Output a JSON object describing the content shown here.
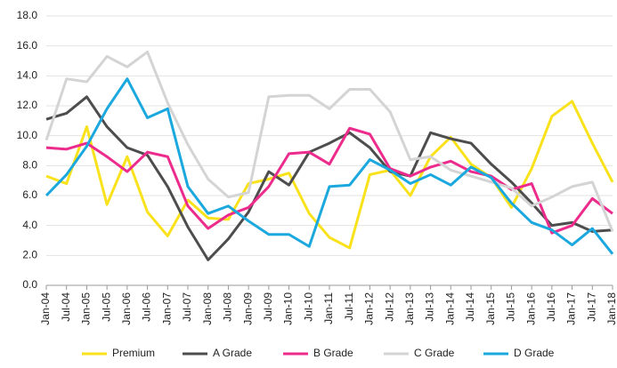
{
  "chart_data": {
    "type": "line",
    "x": [
      "Jan-04",
      "Jul-04",
      "Jan-05",
      "Jul-05",
      "Jan-06",
      "Jul-06",
      "Jan-07",
      "Jul-07",
      "Jan-08",
      "Jul-08",
      "Jan-09",
      "Jul-09",
      "Jan-10",
      "Jul-10",
      "Jan-11",
      "Jul-11",
      "Jan-12",
      "Jul-12",
      "Jan-13",
      "Jul-13",
      "Jan-14",
      "Jul-14",
      "Jan-15",
      "Jul-15",
      "Jan-16",
      "Jul-16",
      "Jan-17",
      "Jul-17",
      "Jan-18"
    ],
    "series": [
      {
        "name": "Premium",
        "color": "#f9e21b",
        "values": [
          7.3,
          6.8,
          10.6,
          5.4,
          8.6,
          4.9,
          3.3,
          5.7,
          4.5,
          4.4,
          6.8,
          7.1,
          7.5,
          4.8,
          3.2,
          2.5,
          7.4,
          7.7,
          6.0,
          8.6,
          9.9,
          8.1,
          7.2,
          5.2,
          7.8,
          11.3,
          12.3,
          9.5,
          6.9
        ]
      },
      {
        "name": "A Grade",
        "color": "#4d4d4d",
        "values": [
          11.1,
          11.5,
          12.6,
          10.6,
          9.2,
          8.7,
          6.6,
          3.9,
          1.7,
          3.1,
          4.9,
          7.6,
          6.7,
          8.9,
          9.5,
          10.2,
          9.2,
          7.6,
          7.3,
          10.2,
          9.8,
          9.5,
          8.1,
          6.9,
          5.5,
          4.0,
          4.2,
          3.6,
          3.7
        ]
      },
      {
        "name": "B Grade",
        "color": "#ec2b8c",
        "values": [
          9.2,
          9.1,
          9.5,
          8.6,
          7.6,
          8.9,
          8.6,
          5.3,
          3.8,
          4.7,
          5.2,
          6.6,
          8.8,
          8.9,
          8.1,
          10.5,
          10.1,
          7.8,
          7.3,
          7.9,
          8.3,
          7.6,
          7.3,
          6.4,
          6.8,
          3.5,
          4.0,
          5.8,
          4.8
        ]
      },
      {
        "name": "C Grade",
        "color": "#d4d4d4",
        "values": [
          9.7,
          13.8,
          13.6,
          15.3,
          14.6,
          15.6,
          12.2,
          9.4,
          7.1,
          5.9,
          6.2,
          12.6,
          12.7,
          12.7,
          11.8,
          13.1,
          13.1,
          11.6,
          8.4,
          8.6,
          7.7,
          7.3,
          6.9,
          6.5,
          5.3,
          5.9,
          6.6,
          6.9,
          3.6
        ]
      },
      {
        "name": "D Grade",
        "color": "#1ba8de",
        "values": [
          6.0,
          7.4,
          9.3,
          11.8,
          13.8,
          11.2,
          11.8,
          6.6,
          4.8,
          5.3,
          4.3,
          3.4,
          3.4,
          2.6,
          6.6,
          6.7,
          8.4,
          7.7,
          6.8,
          7.4,
          6.7,
          7.9,
          7.2,
          5.5,
          4.2,
          3.7,
          2.7,
          3.8,
          2.1
        ]
      }
    ],
    "ylim": [
      0,
      18
    ],
    "yticks": [
      {
        "value": 0,
        "label": "0.0"
      },
      {
        "value": 2,
        "label": "2.0"
      },
      {
        "value": 4,
        "label": "4.0"
      },
      {
        "value": 6,
        "label": "6.0"
      },
      {
        "value": 8,
        "label": "8.0"
      },
      {
        "value": 10,
        "label": "10.0"
      },
      {
        "value": 12,
        "label": "12.0"
      },
      {
        "value": 14,
        "label": "14.0"
      },
      {
        "value": 16,
        "label": "16.0"
      },
      {
        "value": 18,
        "label": "18.0"
      }
    ],
    "grid": true,
    "legend": "bottom"
  }
}
